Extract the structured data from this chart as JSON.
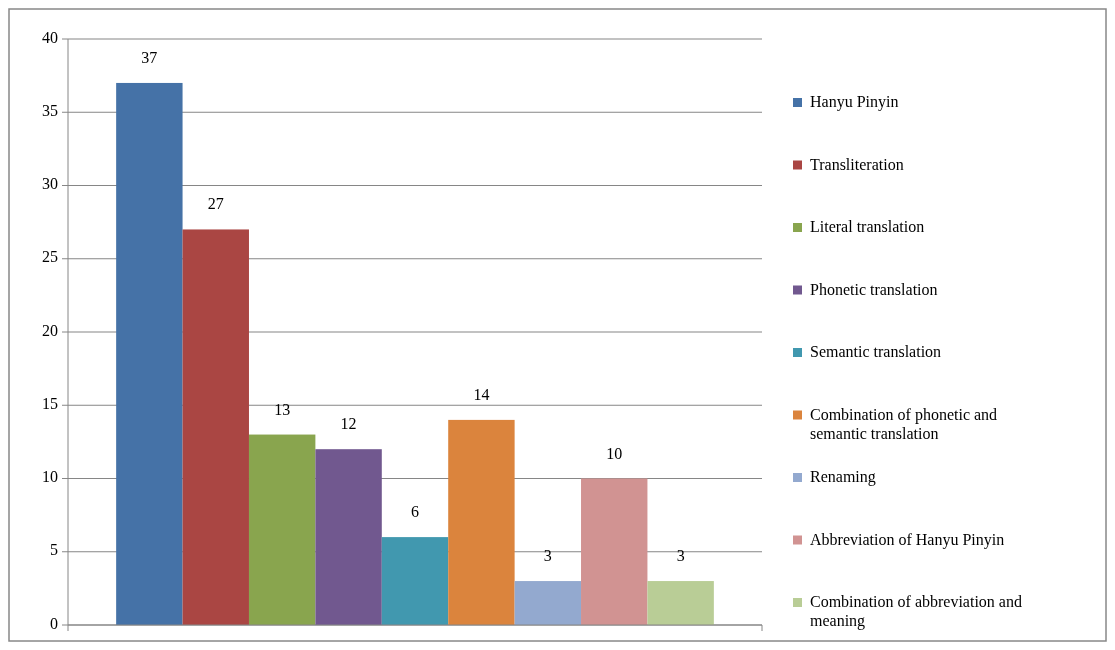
{
  "chart_data": {
    "type": "bar",
    "categories": [
      null
    ],
    "series": [
      {
        "name": "Hanyu Pinyin",
        "color": "#4572a7",
        "values": [
          37
        ]
      },
      {
        "name": "Transliteration",
        "color": "#aa4643",
        "values": [
          27
        ]
      },
      {
        "name": "Literal translation",
        "color": "#89a54e",
        "values": [
          13
        ]
      },
      {
        "name": "Phonetic translation",
        "color": "#71588f",
        "values": [
          12
        ]
      },
      {
        "name": "Semantic translation",
        "color": "#4198af",
        "values": [
          6
        ]
      },
      {
        "name": "Combination of phonetic and semantic translation",
        "color": "#db843d",
        "values": [
          14
        ]
      },
      {
        "name": "Renaming",
        "color": "#93a9cf",
        "values": [
          3
        ]
      },
      {
        "name": "Abbreviation of Hanyu Pinyin",
        "color": "#d19392",
        "values": [
          10
        ]
      },
      {
        "name": "Combination of abbreviation and meaning",
        "color": "#b9cd96",
        "values": [
          3
        ]
      }
    ],
    "ylim": [
      0,
      40
    ],
    "yticks": [
      0,
      5,
      10,
      15,
      20,
      25,
      30,
      35,
      40
    ],
    "grid": "y",
    "legend": "right",
    "data_labels": true
  }
}
